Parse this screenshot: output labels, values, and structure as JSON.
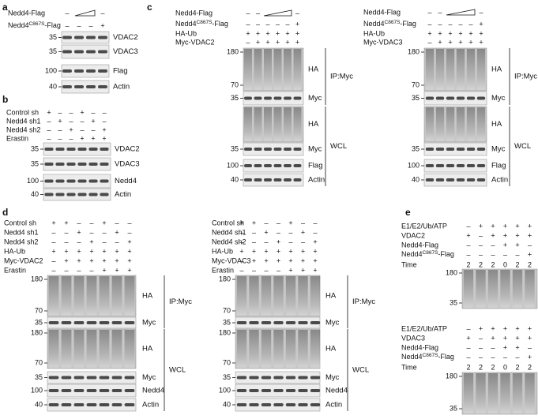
{
  "panels": [
    {
      "letter": "a",
      "blocks": [
        {
          "rows": [
            {
              "label": "Nedd4-Flag",
              "signs": [
                "–",
                null,
                null,
                "–"
              ]
            },
            {
              "label": {
                "text": "Nedd4",
                "sup": "C867S",
                "after": "-Flag"
              },
              "signs": [
                "–",
                "–",
                "–",
                "+"
              ]
            }
          ],
          "sections": [
            {
              "blots": [
                {
                  "markers": [
                    35
                  ],
                  "label": "VDAC2"
                },
                {
                  "markers": [
                    35
                  ],
                  "label": "VDAC3"
                },
                {
                  "markers": [
                    100
                  ],
                  "label": "Flag"
                },
                {
                  "markers": [
                    40
                  ],
                  "label": "Actin"
                }
              ]
            }
          ]
        }
      ]
    },
    {
      "letter": "b",
      "blocks": [
        {
          "rows": [
            {
              "label": "Control sh",
              "signs": [
                "+",
                "–",
                "–",
                "+",
                "–",
                "–"
              ]
            },
            {
              "label": "Nedd4 sh1",
              "signs": [
                "–",
                "+",
                "–",
                "–",
                "+",
                "–"
              ]
            },
            {
              "label": "Nedd4 sh2",
              "signs": [
                "–",
                "–",
                "+",
                "–",
                "–",
                "+"
              ]
            },
            {
              "label": "Erastin",
              "signs": [
                "–",
                "–",
                "–",
                "+",
                "+",
                "+"
              ]
            }
          ],
          "sections": [
            {
              "blots": [
                {
                  "markers": [
                    35
                  ],
                  "label": "VDAC2"
                },
                {
                  "markers": [
                    35
                  ],
                  "label": "VDAC3"
                },
                {
                  "markers": [
                    100
                  ],
                  "label": "Nedd4"
                },
                {
                  "markers": [
                    40
                  ],
                  "label": "Actin"
                }
              ]
            }
          ]
        }
      ]
    },
    {
      "letter": "c",
      "blocks": [
        {
          "rows": [
            {
              "label": "Nedd4-Flag",
              "signs": [
                "–",
                "–",
                null,
                null,
                null,
                "–"
              ]
            },
            {
              "label": {
                "text": "Nedd4",
                "sup": "C867S",
                "after": "-Flag"
              },
              "signs": [
                "–",
                "–",
                "–",
                "–",
                "–",
                "+"
              ]
            },
            {
              "label": "HA-Ub",
              "signs": [
                "+",
                "+",
                "+",
                "+",
                "+",
                "+"
              ]
            },
            {
              "label": "Myc-VDAC2",
              "signs": [
                "–",
                "+",
                "+",
                "+",
                "+",
                "+"
              ]
            }
          ],
          "sections": [
            {
              "label": "IP:Myc",
              "blots": [
                {
                  "markers": [
                    180,
                    70
                  ],
                  "label": "HA"
                },
                {
                  "markers": [
                    35
                  ],
                  "label": "Myc"
                }
              ]
            },
            {
              "label": "WCL",
              "blots": [
                {
                  "markers": [],
                  "label": "HA"
                },
                {
                  "markers": [
                    35
                  ],
                  "label": "Myc"
                },
                {
                  "markers": [
                    100
                  ],
                  "label": "Flag"
                },
                {
                  "markers": [
                    40
                  ],
                  "label": "Actin"
                }
              ]
            }
          ]
        },
        {
          "rows": [
            {
              "label": "Nedd4-Flag",
              "signs": [
                "–",
                "–",
                null,
                null,
                null,
                "–"
              ]
            },
            {
              "label": {
                "text": "Nedd4",
                "sup": "C867S",
                "after": "-Flag"
              },
              "signs": [
                "–",
                "–",
                "–",
                "–",
                "–",
                "+"
              ]
            },
            {
              "label": "HA-Ub",
              "signs": [
                "+",
                "+",
                "+",
                "+",
                "+",
                "+"
              ]
            },
            {
              "label": "Myc-VDAC3",
              "signs": [
                "–",
                "+",
                "+",
                "+",
                "+",
                "+"
              ]
            }
          ],
          "sections": [
            {
              "label": "IP:Myc",
              "blots": [
                {
                  "markers": [
                    180,
                    70
                  ],
                  "label": "HA"
                },
                {
                  "markers": [
                    35
                  ],
                  "label": "Myc"
                }
              ]
            },
            {
              "label": "WCL",
              "blots": [
                {
                  "markers": [],
                  "label": "HA"
                },
                {
                  "markers": [
                    35
                  ],
                  "label": "Myc"
                },
                {
                  "markers": [
                    100
                  ],
                  "label": "Flag"
                },
                {
                  "markers": [
                    40
                  ],
                  "label": "Actin"
                }
              ]
            }
          ]
        }
      ]
    },
    {
      "letter": "d",
      "blocks": [
        {
          "rows": [
            {
              "label": "Control sh",
              "signs": [
                "+",
                "+",
                "–",
                "–",
                "+",
                "–",
                "–"
              ]
            },
            {
              "label": "Nedd4 sh1",
              "signs": [
                "–",
                "–",
                "+",
                "–",
                "–",
                "+",
                "–"
              ]
            },
            {
              "label": "Nedd4 sh2",
              "signs": [
                "–",
                "–",
                "–",
                "+",
                "–",
                "–",
                "+"
              ]
            },
            {
              "label": "HA-Ub",
              "signs": [
                "+",
                "+",
                "+",
                "+",
                "+",
                "+",
                "+"
              ]
            },
            {
              "label": "Myc-VDAC2",
              "signs": [
                "–",
                "+",
                "+",
                "+",
                "+",
                "+",
                "+"
              ]
            },
            {
              "label": "Erastin",
              "signs": [
                "–",
                "–",
                "–",
                "–",
                "+",
                "+",
                "+"
              ]
            }
          ],
          "sections": [
            {
              "label": "IP:Myc",
              "blots": [
                {
                  "markers": [
                    180,
                    70
                  ],
                  "label": "HA"
                },
                {
                  "markers": [
                    35
                  ],
                  "label": "Myc"
                }
              ]
            },
            {
              "label": "WCL",
              "blots": [
                {
                  "markers": [
                    180,
                    70
                  ],
                  "label": "HA"
                },
                {
                  "markers": [
                    35
                  ],
                  "label": "Myc"
                },
                {
                  "markers": [
                    100
                  ],
                  "label": "Nedd4"
                },
                {
                  "markers": [
                    40
                  ],
                  "label": "Actin"
                }
              ]
            }
          ]
        },
        {
          "rows": [
            {
              "label": "Control sh",
              "signs": [
                "+",
                "+",
                "–",
                "–",
                "+",
                "–",
                "–"
              ]
            },
            {
              "label": "Nedd4 sh1",
              "signs": [
                "–",
                "–",
                "+",
                "–",
                "–",
                "+",
                "–"
              ]
            },
            {
              "label": "Nedd4 sh2",
              "signs": [
                "–",
                "–",
                "–",
                "+",
                "–",
                "–",
                "+"
              ]
            },
            {
              "label": "HA-Ub",
              "signs": [
                "+",
                "+",
                "+",
                "+",
                "+",
                "+",
                "+"
              ]
            },
            {
              "label": "Myc-VDAC3",
              "signs": [
                "–",
                "+",
                "+",
                "+",
                "+",
                "+",
                "+"
              ]
            },
            {
              "label": "Erastin",
              "signs": [
                "–",
                "–",
                "–",
                "–",
                "+",
                "+",
                "+"
              ]
            }
          ],
          "sections": [
            {
              "label": "IP:Myc",
              "blots": [
                {
                  "markers": [
                    180,
                    70
                  ],
                  "label": "HA"
                },
                {
                  "markers": [
                    35
                  ],
                  "label": "Myc"
                }
              ]
            },
            {
              "label": "WCL",
              "blots": [
                {
                  "markers": [
                    180,
                    70
                  ],
                  "label": "HA"
                },
                {
                  "markers": [
                    35
                  ],
                  "label": "Myc"
                },
                {
                  "markers": [
                    100
                  ],
                  "label": "Nedd4"
                },
                {
                  "markers": [
                    40
                  ],
                  "label": "Actin"
                }
              ]
            }
          ]
        }
      ]
    },
    {
      "letter": "e",
      "blocks": [
        {
          "rows": [
            {
              "label": "E1/E2/Ub/ATP",
              "signs": [
                "–",
                "+",
                "+",
                "+",
                "+",
                "+"
              ]
            },
            {
              "label": "VDAC2",
              "signs": [
                "+",
                "–",
                "+",
                "+",
                "+",
                "+"
              ]
            },
            {
              "label": "Nedd4-Flag",
              "signs": [
                "–",
                "–",
                "–",
                "+",
                "+",
                "–"
              ]
            },
            {
              "label": {
                "text": "Nedd4",
                "sup": "C867S",
                "after": "-Flag"
              },
              "signs": [
                "–",
                "–",
                "–",
                "–",
                "–",
                "+"
              ]
            },
            {
              "label": "Time",
              "signs": [
                "2",
                "2",
                "2",
                "0",
                "2",
                "2"
              ]
            }
          ],
          "sections": [
            {
              "blots": [
                {
                  "markers": [
                    180,
                    35
                  ]
                }
              ]
            }
          ]
        },
        {
          "rows": [
            {
              "label": "E1/E2/Ub/ATP",
              "signs": [
                "–",
                "+",
                "+",
                "+",
                "+",
                "+"
              ]
            },
            {
              "label": "VDAC3",
              "signs": [
                "+",
                "–",
                "+",
                "+",
                "+",
                "+"
              ]
            },
            {
              "label": "Nedd4-Flag",
              "signs": [
                "–",
                "–",
                "–",
                "+",
                "+",
                "–"
              ]
            },
            {
              "label": {
                "text": "Nedd4",
                "sup": "C867S",
                "after": "-Flag"
              },
              "signs": [
                "–",
                "–",
                "–",
                "–",
                "–",
                "+"
              ]
            },
            {
              "label": "Time",
              "signs": [
                "2",
                "2",
                "2",
                "0",
                "2",
                "2"
              ]
            }
          ],
          "sections": [
            {
              "blots": [
                {
                  "markers": [
                    180,
                    35
                  ]
                }
              ]
            }
          ]
        }
      ]
    }
  ]
}
